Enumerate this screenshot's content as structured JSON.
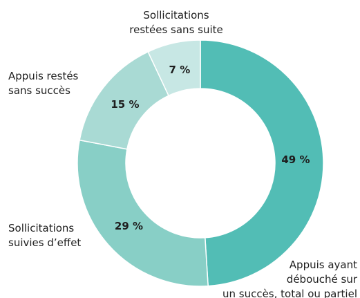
{
  "chart_data": {
    "type": "donut",
    "categories": [
      "Appuis ayant\ndébouché sur\nun succès, total ou partiel",
      "Sollicitations\nsuivies d’effet",
      "Appuis restés\nsans succès",
      "Sollicitations\nrestées sans suite"
    ],
    "values": [
      49,
      29,
      15,
      7
    ],
    "value_labels": [
      "49 %",
      "29 %",
      "15 %",
      "7 %"
    ],
    "colors": [
      "#52bdb5",
      "#88cfc6",
      "#a9dad4",
      "#c7e7e4"
    ],
    "value_label_colors": [
      "#ffffff",
      "#ffffff",
      "#ffffff",
      "#52bdb5"
    ]
  }
}
